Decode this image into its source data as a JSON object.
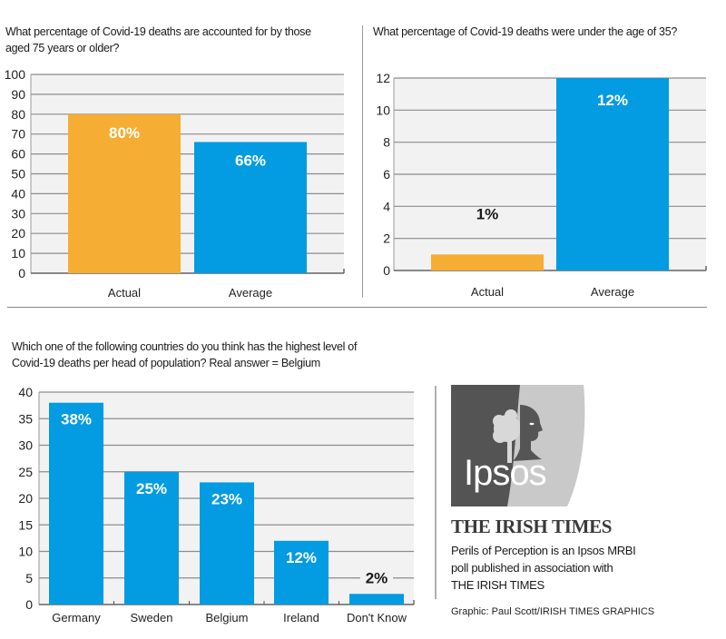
{
  "colors": {
    "actual": "#f6ad33",
    "average": "#039be1",
    "grid": "#8c8c8c",
    "plot_bg": "#f2f2f2"
  },
  "chart_data": [
    {
      "type": "bar",
      "title": "What percentage of Covid-19 deaths are accounted for by those aged 75 years or older?",
      "title_lines": [
        "What percentage of Covid-19 deaths are accounted for by those",
        "aged 75 years or older?"
      ],
      "categories": [
        "Actual",
        "Average"
      ],
      "values": [
        80,
        66
      ],
      "data_labels": [
        "80%",
        "66%"
      ],
      "bar_colors": [
        "#f6ad33",
        "#039be1"
      ],
      "xlabel": "",
      "ylabel": "",
      "ylim": [
        0,
        100
      ],
      "yticks": [
        0,
        10,
        20,
        30,
        40,
        50,
        60,
        70,
        80,
        90,
        100
      ],
      "grid": true
    },
    {
      "type": "bar",
      "title": "What percentage of Covid-19 deaths were under the age of 35?",
      "title_lines": [
        "What percentage of Covid-19 deaths were under the age of 35?"
      ],
      "categories": [
        "Actual",
        "Average"
      ],
      "values": [
        1,
        12
      ],
      "data_labels": [
        "1%",
        "12%"
      ],
      "bar_colors": [
        "#f6ad33",
        "#039be1"
      ],
      "xlabel": "",
      "ylabel": "",
      "ylim": [
        0,
        12
      ],
      "yticks": [
        0,
        2,
        4,
        6,
        8,
        10,
        12
      ],
      "grid": true
    },
    {
      "type": "bar",
      "title": "Which one of the following countries do you think has the highest level of Covid-19 deaths per head of population? Real answer = Belgium",
      "title_lines": [
        "Which one of the following countries do you think has the highest level of",
        "Covid-19 deaths per head of population? Real answer = Belgium"
      ],
      "categories": [
        "Germany",
        "Sweden",
        "Belgium",
        "Ireland",
        "Don't Know"
      ],
      "values": [
        38,
        25,
        23,
        12,
        2
      ],
      "data_labels": [
        "38%",
        "25%",
        "23%",
        "12%",
        "2%"
      ],
      "bar_colors": [
        "#039be1",
        "#039be1",
        "#039be1",
        "#039be1",
        "#039be1"
      ],
      "xlabel": "",
      "ylabel": "",
      "ylim": [
        0,
        40
      ],
      "yticks": [
        0,
        5,
        10,
        15,
        20,
        25,
        30,
        35,
        40
      ],
      "grid": true
    }
  ],
  "sidebar": {
    "logo_text": "Ipsos",
    "masthead": "THE IRISH TIMES",
    "blurb_lines": [
      "Perils of Perception is an Ipsos MRBI",
      "poll published in association with",
      "THE IRISH TIMES"
    ],
    "credit": "Graphic: Paul Scott/IRISH TIMES GRAPHICS"
  }
}
